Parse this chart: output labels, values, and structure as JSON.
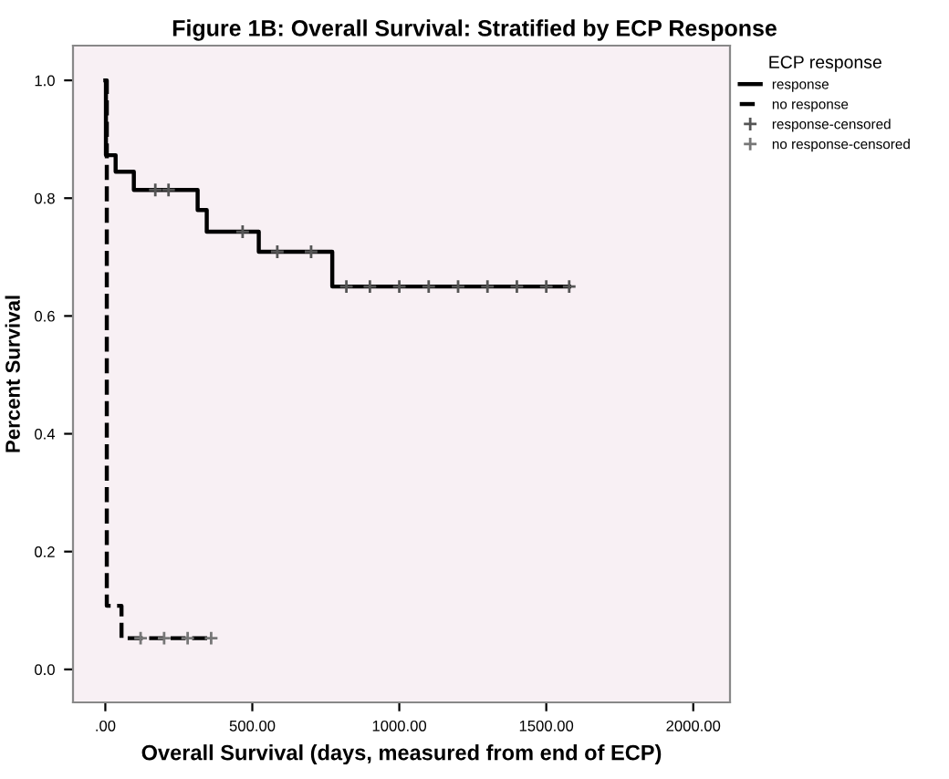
{
  "chart_data": {
    "type": "step",
    "title": "Figure 1B: Overall Survival: Stratified by ECP Response",
    "xlabel": "Overall Survival (days, measured from end of ECP)",
    "ylabel": "Percent Survival",
    "legend_title": "ECP response",
    "series": [
      {
        "name": "response",
        "color": "#000000",
        "line_style": "solid",
        "x": [
          0,
          2,
          35,
          97,
          314,
          345,
          522,
          772,
          1578
        ],
        "values": [
          1.0,
          0.873,
          0.845,
          0.814,
          0.78,
          0.743,
          0.709,
          0.65,
          0.65
        ]
      },
      {
        "name": "no response",
        "color": "#000000",
        "line_style": "dashed",
        "x": [
          0,
          5,
          55,
          360
        ],
        "values": [
          1.0,
          0.108,
          0.053,
          0.053
        ]
      },
      {
        "name": "response-censored",
        "type": "scatter",
        "marker": "cross",
        "color": "#555555",
        "x": [
          170,
          215,
          467,
          585,
          700,
          820,
          900,
          1000,
          1100,
          1200,
          1300,
          1400,
          1500,
          1578
        ],
        "values": [
          0.814,
          0.814,
          0.743,
          0.709,
          0.709,
          0.65,
          0.65,
          0.65,
          0.65,
          0.65,
          0.65,
          0.65,
          0.65,
          0.65
        ]
      },
      {
        "name": "no response-censored",
        "type": "scatter",
        "marker": "cross",
        "color": "#777777",
        "x": [
          120,
          200,
          280,
          360
        ],
        "values": [
          0.053,
          0.053,
          0.053,
          0.053
        ]
      }
    ],
    "xlim": [
      -110,
      2125
    ],
    "xticks": [
      {
        "value": 0,
        "label": ".00"
      },
      {
        "value": 500,
        "label": "500.00"
      },
      {
        "value": 1000,
        "label": "1000.00"
      },
      {
        "value": 1500,
        "label": "1500.00"
      },
      {
        "value": 2000,
        "label": "2000.00"
      }
    ],
    "ylim": [
      -0.056,
      1.059
    ],
    "yticks": [
      {
        "value": 0,
        "label": "0.0"
      },
      {
        "value": 0.2,
        "label": "0.2"
      },
      {
        "value": 0.4,
        "label": "0.4"
      },
      {
        "value": 0.6,
        "label": "0.6"
      },
      {
        "value": 0.8,
        "label": "0.8"
      },
      {
        "value": 1.0,
        "label": "1.0"
      }
    ],
    "grid": false,
    "legend": "top right"
  }
}
